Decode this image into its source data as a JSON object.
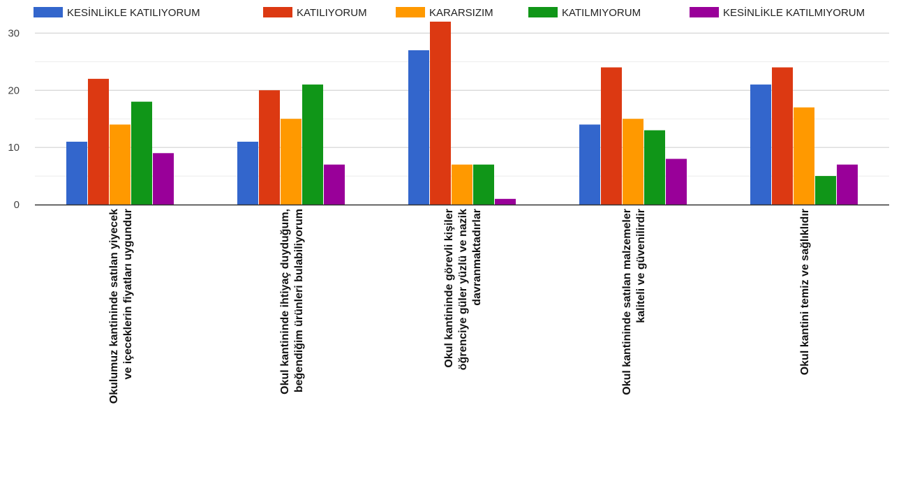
{
  "chart_data": {
    "type": "bar",
    "categories": [
      [
        "Okulumuz kantininde satılan yiyecek",
        "ve içeceklerin fiyatları uygundur"
      ],
      [
        "Okul kantininde ihtiyaç duyduğum,",
        "beğendiğim ürünleri bulabiliyorum"
      ],
      [
        "Okul kantininde görevli kişiler",
        "öğrenciye güler yüzlü ve nazik",
        "davranmaktadırlar"
      ],
      [
        "Okul kantininde satılan malzemeler",
        "kaliteli ve güvenilirdir"
      ],
      [
        "Okul kantini  temiz ve  sağlıklıdır"
      ]
    ],
    "series": [
      {
        "name": "KESİNLİKLE KATILIYORUM",
        "color": "#3366cc",
        "values": [
          11,
          11,
          27,
          14,
          21
        ]
      },
      {
        "name": "KATILIYORUM",
        "color": "#dc3912",
        "values": [
          22,
          20,
          32,
          24,
          24
        ]
      },
      {
        "name": "KARARSIZIM",
        "color": "#ff9900",
        "values": [
          14,
          15,
          7,
          15,
          17
        ]
      },
      {
        "name": "KATILMIYORUM",
        "color": "#109618",
        "values": [
          18,
          21,
          7,
          13,
          5
        ]
      },
      {
        "name": "KESİNLİKLE KATILMIYORUM",
        "color": "#990099",
        "values": [
          9,
          7,
          1,
          8,
          7
        ]
      }
    ],
    "yticks": [
      0,
      10,
      20,
      30
    ],
    "ylim": [
      0,
      32
    ],
    "grid": true,
    "legend_position": "top",
    "title": "",
    "xlabel": "",
    "ylabel": ""
  }
}
